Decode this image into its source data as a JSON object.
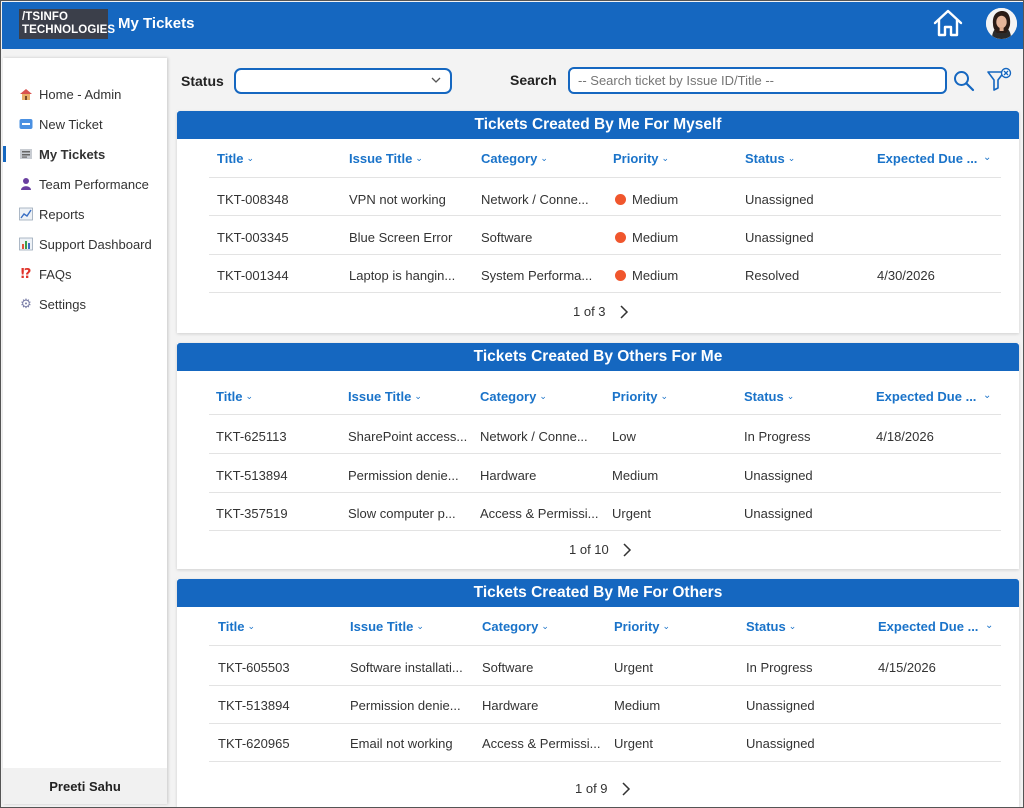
{
  "header": {
    "logo_line1": "/TSINFO",
    "logo_line2": "TECHNOLOGIES",
    "title": "My Tickets",
    "home_icon": "home-icon",
    "avatar": "user-avatar"
  },
  "sidebar": {
    "items": [
      {
        "label": "Home - Admin",
        "icon": "house-icon"
      },
      {
        "label": "New Ticket",
        "icon": "new-badge-icon"
      },
      {
        "label": "My Tickets",
        "icon": "ticket-list-icon",
        "active": true
      },
      {
        "label": "Team Performance",
        "icon": "team-icon"
      },
      {
        "label": "Reports",
        "icon": "chart-trend-icon"
      },
      {
        "label": "Support Dashboard",
        "icon": "bar-chart-icon"
      },
      {
        "label": "FAQs",
        "icon": "question-exclamation-icon"
      },
      {
        "label": "Settings",
        "icon": "gear-icon"
      }
    ],
    "user_name": "Preeti Sahu"
  },
  "filters": {
    "status_label": "Status",
    "status_value": "",
    "search_label": "Search",
    "search_placeholder": "-- Search ticket by Issue ID/Title --"
  },
  "columns": [
    "Title",
    "Issue Title",
    "Category",
    "Priority",
    "Status",
    "Expected Due ..."
  ],
  "sections": [
    {
      "title": "Tickets Created By Me For Myself",
      "rows": [
        {
          "id": "TKT-008348",
          "issue": "VPN not working",
          "category": "Network / Conne...",
          "priority": "Medium",
          "status": "Unassigned",
          "due": ""
        },
        {
          "id": "TKT-003345",
          "issue": "Blue Screen Error",
          "category": "Software",
          "priority": "Medium",
          "status": "Unassigned",
          "due": ""
        },
        {
          "id": "TKT-001344",
          "issue": "Laptop is hangin...",
          "category": "System Performa...",
          "priority": "Medium",
          "status": "Resolved",
          "due": "4/30/2026"
        }
      ],
      "pager": "1 of 3"
    },
    {
      "title": "Tickets Created By Others For Me",
      "rows": [
        {
          "id": "TKT-625113",
          "issue": "SharePoint access...",
          "category": "Network / Conne...",
          "priority": "Low",
          "status": "In Progress",
          "due": "4/18/2026"
        },
        {
          "id": "TKT-513894",
          "issue": "Permission denie...",
          "category": "Hardware",
          "priority": "Medium",
          "status": "Unassigned",
          "due": ""
        },
        {
          "id": "TKT-357519",
          "issue": "Slow computer p...",
          "category": "Access & Permissi...",
          "priority": "Urgent",
          "status": "Unassigned",
          "due": ""
        }
      ],
      "pager": "1 of 10"
    },
    {
      "title": "Tickets Created By Me For Others",
      "rows": [
        {
          "id": "TKT-605503",
          "issue": "Software installati...",
          "category": "Software",
          "priority": "Urgent",
          "status": "In Progress",
          "due": "4/15/2026"
        },
        {
          "id": "TKT-513894",
          "issue": "Permission denie...",
          "category": "Hardware",
          "priority": "Medium",
          "status": "Unassigned",
          "due": ""
        },
        {
          "id": "TKT-620965",
          "issue": "Email not working",
          "category": "Access & Permissi...",
          "priority": "Urgent",
          "status": "Unassigned",
          "due": ""
        }
      ],
      "pager": "1 of 9"
    }
  ],
  "colors": {
    "brand": "#1567c0",
    "column_header": "#1a73c9",
    "priority_dot": "#f0562d"
  }
}
